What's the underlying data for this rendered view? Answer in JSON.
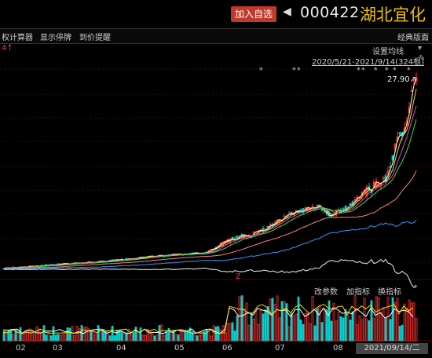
{
  "header": {
    "add_watchlist": "加入自选",
    "stock_code": "000422",
    "stock_name": "湖北宜化"
  },
  "toolbar": {
    "items": [
      "权计算器",
      "显示停牌",
      "到价提醒"
    ],
    "classic_layout": "经典版面"
  },
  "chart": {
    "left_marker": "4↑",
    "ma_setting": "设置均线",
    "date_range": "2020/5/21-2021/9/14(324根)",
    "high_label": "27.90↗",
    "volume_controls": [
      "改参数",
      "加指标",
      "换指标"
    ],
    "x_ticks": [
      "02",
      "03",
      "04",
      "05",
      "06",
      "07",
      "08"
    ],
    "cursor_date": "2021/09/14/二",
    "colors": {
      "up": "#ff3333",
      "down": "#00d0d0",
      "ma5": "#ffffff",
      "ma10": "#f0e000",
      "ma20": "#e040e0",
      "ma30": "#40e040",
      "ma60": "#ff8080",
      "ma120": "#3399ff",
      "ma250": "#eeeeee"
    }
  }
}
